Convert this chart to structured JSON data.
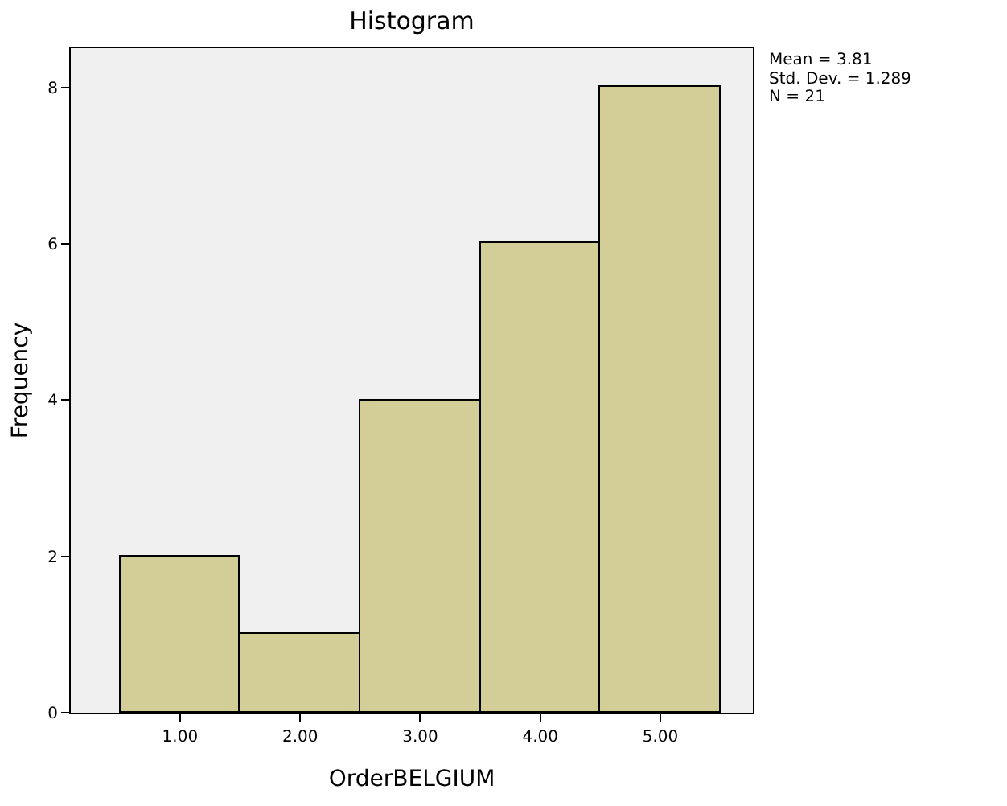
{
  "chart_data": {
    "type": "histogram",
    "title": "Histogram",
    "xlabel": "OrderBELGIUM",
    "ylabel": "Frequency",
    "bins": [
      0.5,
      1.5,
      2.5,
      3.5,
      4.5,
      5.5
    ],
    "values": [
      2,
      1,
      4,
      6,
      8
    ],
    "color": "#d3ce97",
    "xlim": [
      0.09,
      5.77
    ],
    "ylim": [
      0,
      8.5
    ],
    "xticks": [
      {
        "value": 1,
        "label": "1.00"
      },
      {
        "value": 2,
        "label": "2.00"
      },
      {
        "value": 3,
        "label": "3.00"
      },
      {
        "value": 4,
        "label": "4.00"
      },
      {
        "value": 5,
        "label": "5.00"
      }
    ],
    "yticks": [
      0,
      2,
      4,
      6,
      8
    ],
    "grid": false,
    "annotations": [
      "Mean = 3.81",
      "Std. Dev. = 1.289",
      "N = 21"
    ]
  }
}
